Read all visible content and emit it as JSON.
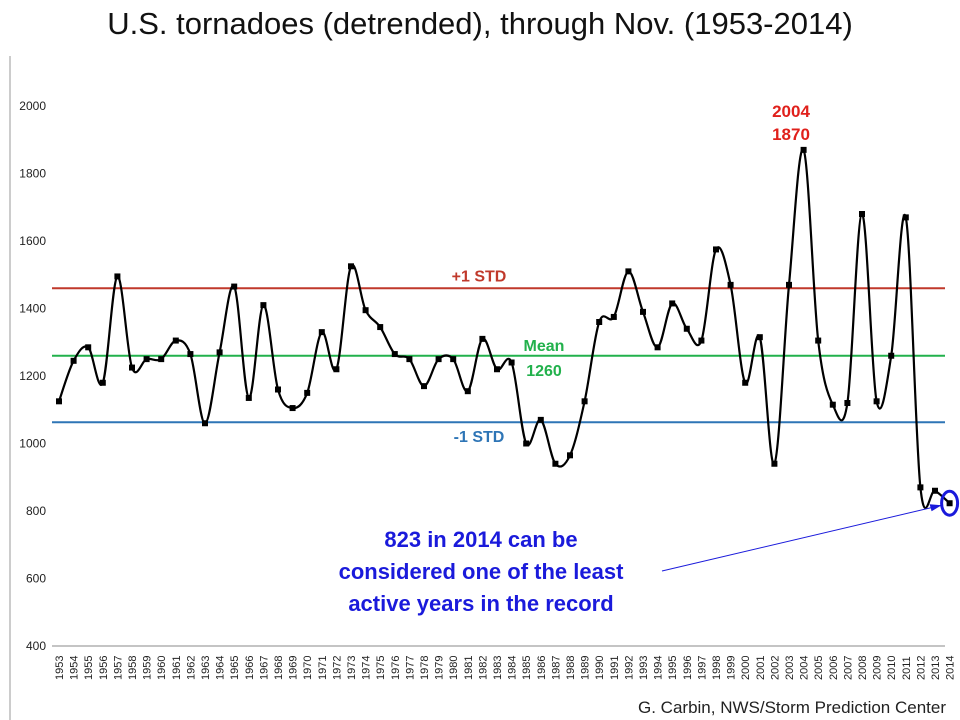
{
  "title": "U.S. tornadoes (detrended), through Nov. (1953-2014)",
  "credit": "G. Carbin, NWS/Storm Prediction Center",
  "chart_data": {
    "type": "line",
    "title": "U.S. tornadoes (detrended), through Nov. (1953-2014)",
    "xlabel": "",
    "ylabel": "",
    "ylim": [
      400,
      2000
    ],
    "yticks": [
      "400",
      "600",
      "800",
      "1000",
      "1200",
      "1400",
      "1600",
      "1800",
      "2000"
    ],
    "grid": false,
    "smoothed": true,
    "x": [
      "1953",
      "1954",
      "1955",
      "1956",
      "1957",
      "1958",
      "1959",
      "1960",
      "1961",
      "1962",
      "1963",
      "1964",
      "1965",
      "1966",
      "1967",
      "1968",
      "1969",
      "1970",
      "1971",
      "1972",
      "1973",
      "1974",
      "1975",
      "1976",
      "1977",
      "1978",
      "1979",
      "1980",
      "1981",
      "1982",
      "1983",
      "1984",
      "1985",
      "1986",
      "1987",
      "1988",
      "1989",
      "1990",
      "1991",
      "1992",
      "1993",
      "1994",
      "1995",
      "1996",
      "1997",
      "1998",
      "1999",
      "2000",
      "2001",
      "2002",
      "2003",
      "2004",
      "2005",
      "2006",
      "2007",
      "2008",
      "2009",
      "2010",
      "2011",
      "2012",
      "2013",
      "2014"
    ],
    "series": [
      {
        "color": "#000000",
        "values": [
          1125,
          1245,
          1285,
          1180,
          1495,
          1225,
          1250,
          1250,
          1305,
          1265,
          1060,
          1270,
          1465,
          1135,
          1410,
          1160,
          1105,
          1150,
          1330,
          1220,
          1525,
          1395,
          1345,
          1265,
          1250,
          1170,
          1250,
          1250,
          1155,
          1310,
          1220,
          1240,
          1000,
          1070,
          940,
          965,
          1125,
          1360,
          1375,
          1510,
          1390,
          1285,
          1415,
          1340,
          1305,
          1575,
          1470,
          1180,
          1315,
          940,
          1470,
          1870,
          1305,
          1115,
          1120,
          1680,
          1125,
          1260,
          1670,
          870,
          860,
          823
        ]
      }
    ],
    "reference_lines": [
      {
        "label": "+1 STD",
        "value": 1460,
        "color": "#c0392b"
      },
      {
        "label": "Mean",
        "value_label": "1260",
        "value": 1260,
        "color": "#22b14c"
      },
      {
        "label": "-1 STD",
        "value": 1063,
        "color": "#2e75b6"
      }
    ],
    "annotations": {
      "peak_year": "2004",
      "peak_value": "1870",
      "peak_color": "#e0201b",
      "note_lines": [
        "823 in 2014 can be",
        "considered one of the least",
        "active years in the record"
      ],
      "note_color": "#1a1adb"
    }
  }
}
